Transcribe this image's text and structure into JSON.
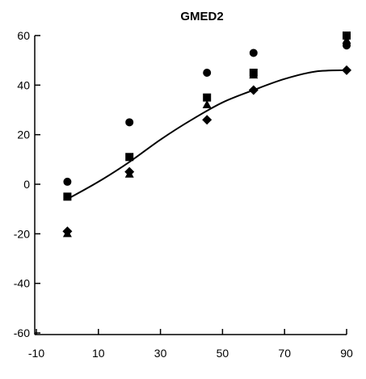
{
  "chart_data": {
    "type": "scatter",
    "title": "GMED2",
    "xlabel": "",
    "ylabel": "",
    "xlim": [
      -10,
      90
    ],
    "ylim": [
      -60,
      60
    ],
    "xticks": [
      -10,
      10,
      30,
      50,
      70,
      90
    ],
    "yticks": [
      -60,
      -40,
      -20,
      0,
      20,
      40,
      60
    ],
    "grid": false,
    "series": [
      {
        "marker": "circle",
        "x": [
          0,
          20,
          45,
          60,
          90
        ],
        "y": [
          1,
          25,
          45,
          53,
          56
        ]
      },
      {
        "marker": "square",
        "x": [
          0,
          20,
          45,
          60,
          90
        ],
        "y": [
          -5,
          11,
          35,
          45,
          60
        ]
      },
      {
        "marker": "triangle",
        "x": [
          0,
          20,
          45,
          60,
          90
        ],
        "y": [
          -20,
          4,
          32,
          44,
          58
        ]
      },
      {
        "marker": "diamond",
        "x": [
          0,
          20,
          45,
          60,
          90
        ],
        "y": [
          -19,
          5,
          26,
          38,
          46
        ]
      }
    ],
    "fit_line": {
      "x": [
        0,
        10,
        20,
        30,
        40,
        50,
        60,
        70,
        80,
        90
      ],
      "y": [
        -6,
        1,
        9,
        18,
        26,
        33,
        38,
        42.5,
        45.5,
        46
      ]
    }
  }
}
